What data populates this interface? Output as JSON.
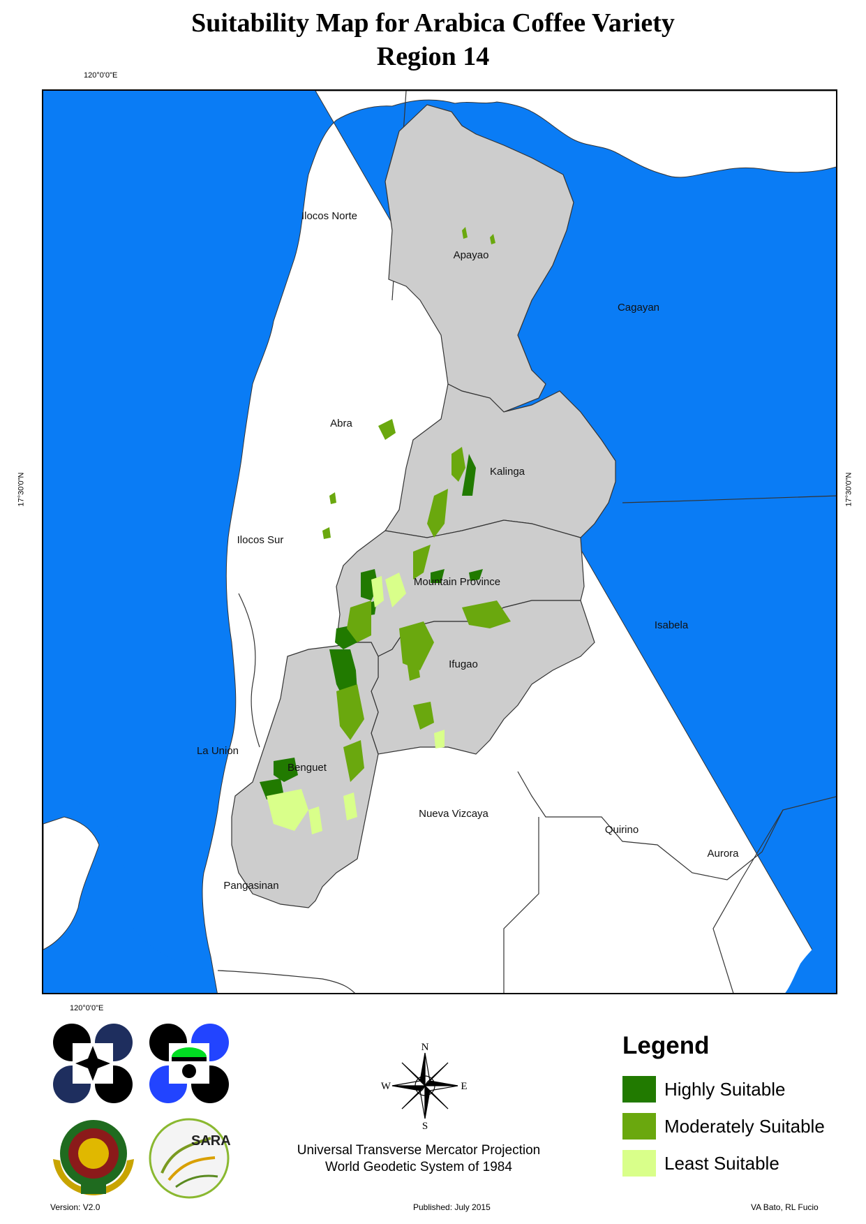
{
  "title": {
    "line1": "Suitability Map for Arabica Coffee Variety",
    "line2": "Region 14"
  },
  "coordinates": {
    "top_longitude": "120°0'0\"E",
    "bottom_longitude": "120°0'0\"E",
    "left_latitude": "17°30'0\"N",
    "right_latitude": "17°30'0\"N"
  },
  "map": {
    "colors": {
      "sea": "#0a7cf5",
      "region_fill": "#cdcdcd",
      "outside_fill": "#ffffff",
      "border": "#333333"
    },
    "provinces": [
      {
        "name": "Apayao",
        "in_region": true
      },
      {
        "name": "Abra",
        "in_region": true
      },
      {
        "name": "Kalinga",
        "in_region": true
      },
      {
        "name": "Mountain Province",
        "in_region": true
      },
      {
        "name": "Ifugao",
        "in_region": true
      },
      {
        "name": "Benguet",
        "in_region": true
      },
      {
        "name": "Ilocos Norte",
        "in_region": false
      },
      {
        "name": "Cagayan",
        "in_region": false
      },
      {
        "name": "Ilocos Sur",
        "in_region": false
      },
      {
        "name": "Isabela",
        "in_region": false
      },
      {
        "name": "La Union",
        "in_region": false
      },
      {
        "name": "Nueva Vizcaya",
        "in_region": false
      },
      {
        "name": "Quirino",
        "in_region": false
      },
      {
        "name": "Aurora",
        "in_region": false
      },
      {
        "name": "Pangasinan",
        "in_region": false
      }
    ]
  },
  "legend": {
    "title": "Legend",
    "items": [
      {
        "label": "Highly Suitable",
        "color": "#217a00"
      },
      {
        "label": "Moderately Suitable",
        "color": "#6aa80e"
      },
      {
        "label": "Least Suitable",
        "color": "#d9ff8a"
      }
    ]
  },
  "compass": {
    "n": "N",
    "s": "S",
    "e": "E",
    "w": "W"
  },
  "projection": {
    "line1": "Universal Transverse Mercator Projection",
    "line2": "World Geodetic System of 1984"
  },
  "logos": {
    "sarai_text": "SARAI"
  },
  "footer": {
    "version": "Version: V2.0",
    "published": "Published: July 2015",
    "authors": "VA Bato, RL Fucio"
  }
}
